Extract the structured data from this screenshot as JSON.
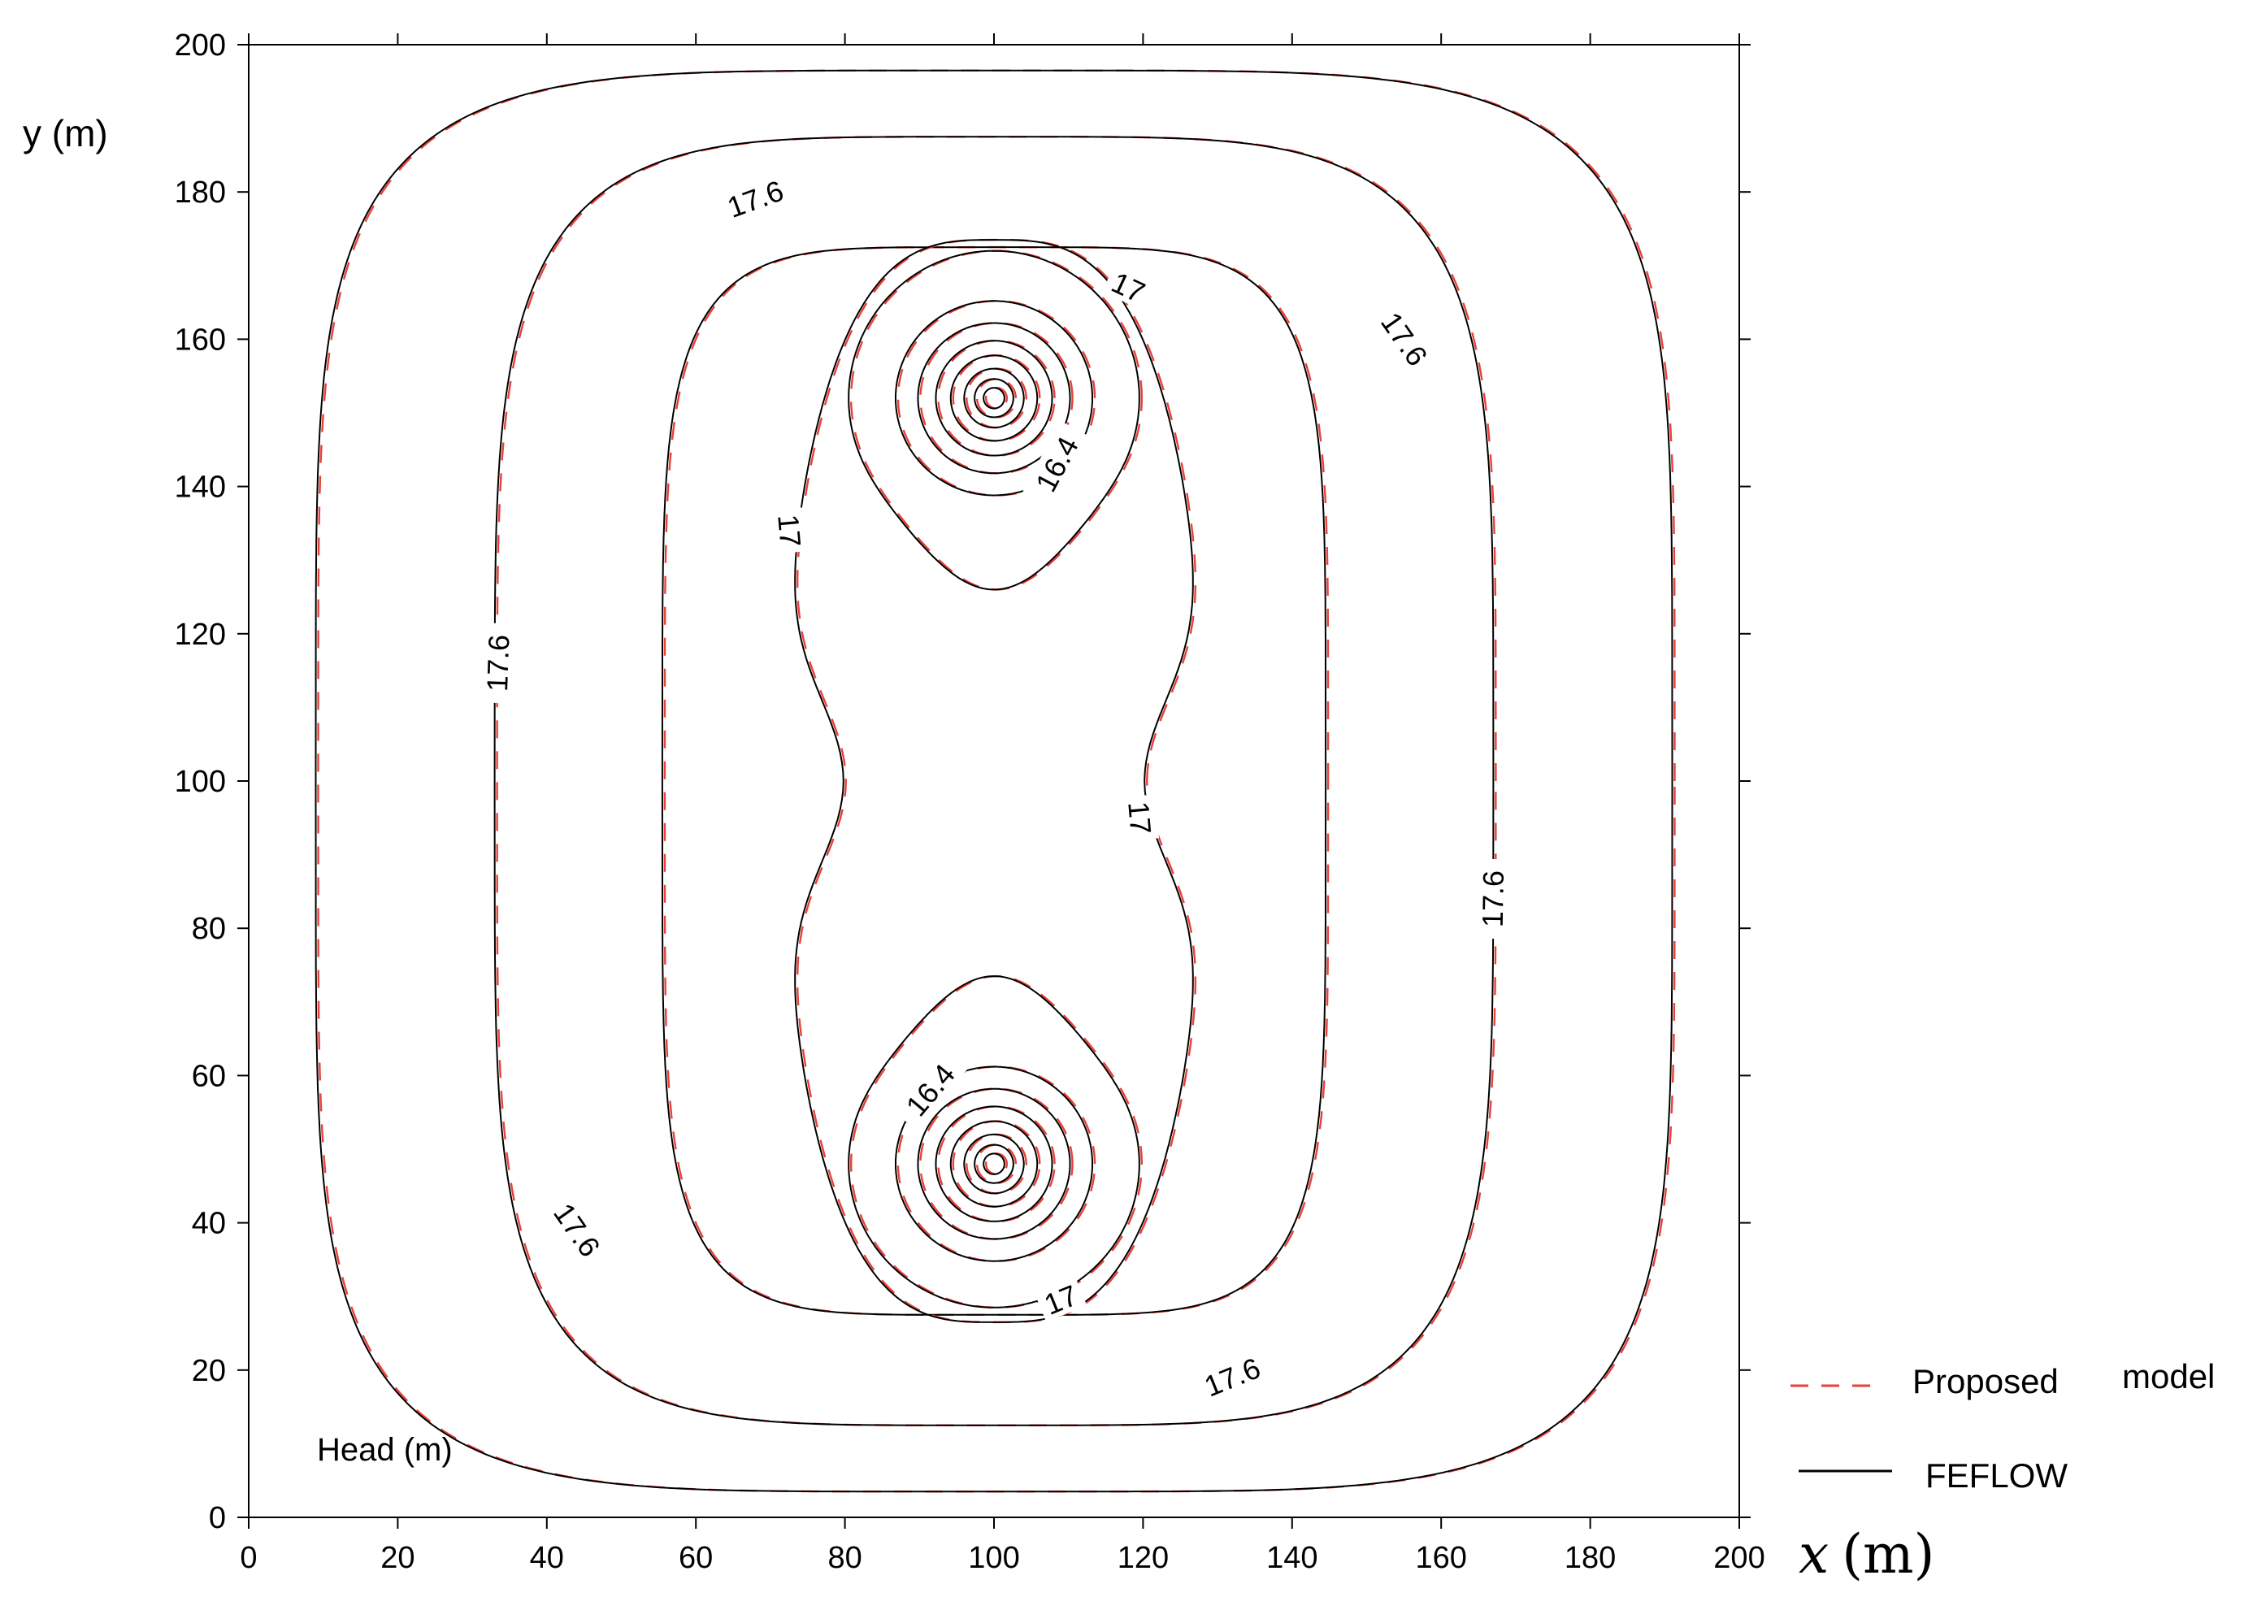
{
  "chart_data": {
    "type": "line",
    "subtype": "contour",
    "xlabel_var": "x",
    "xlabel_unit": "(m)",
    "ylabel": "y (m)",
    "xlim": [
      0,
      200
    ],
    "ylim": [
      0,
      200
    ],
    "x_ticks": [
      "0",
      "20",
      "40",
      "60",
      "80",
      "100",
      "120",
      "140",
      "160",
      "180",
      "200"
    ],
    "y_ticks": [
      "0",
      "20",
      "40",
      "60",
      "80",
      "100",
      "120",
      "140",
      "160",
      "180",
      "200"
    ],
    "grid": false,
    "annotation": "Head (m)",
    "legend_position": "right",
    "series": [
      {
        "name": "Proposed",
        "name_suffix": "model",
        "color": "#e8413a",
        "dash": "dashed"
      },
      {
        "name": "FEFLOW",
        "color": "#000000",
        "dash": "solid"
      }
    ],
    "wells": [
      {
        "x": 100,
        "y": 152
      },
      {
        "x": 100,
        "y": 48
      }
    ],
    "contour_lines": [
      {
        "type": "rect",
        "cx": 100,
        "cy": 100,
        "hw": 91,
        "hh": 96.5,
        "n": 5
      },
      {
        "type": "rect",
        "cx": 100,
        "cy": 100,
        "hw": 67,
        "hh": 87.5,
        "n": 4.5,
        "level": "17.6"
      },
      {
        "type": "rect",
        "cx": 100,
        "cy": 100,
        "hw": 44.5,
        "hh": 72.5,
        "n": 5
      },
      {
        "type": "peanut",
        "cx": 100,
        "cy": 100,
        "rx": 28.5,
        "ry": 73.5,
        "pinch": 8.3,
        "level": "17"
      },
      {
        "type": "loop",
        "x": 100,
        "y": 152,
        "rx": 19.5,
        "ry": 20,
        "tail": 6
      },
      {
        "type": "loop",
        "x": 100,
        "y": 48,
        "rx": 19.5,
        "ry": 19.5,
        "tail": 6
      },
      {
        "type": "circle",
        "x": 100,
        "y": 152,
        "r": 13.2
      },
      {
        "type": "circle",
        "x": 100,
        "y": 152,
        "r": 10.2
      },
      {
        "type": "circle",
        "x": 100,
        "y": 152,
        "r": 7.8
      },
      {
        "type": "circle",
        "x": 100,
        "y": 152,
        "r": 5.8
      },
      {
        "type": "circle",
        "x": 100,
        "y": 152,
        "r": 4.0
      },
      {
        "type": "circle",
        "x": 100,
        "y": 152,
        "r": 2.6
      },
      {
        "type": "circle",
        "x": 100,
        "y": 152,
        "r": 1.4
      },
      {
        "type": "circle",
        "x": 100,
        "y": 48,
        "r": 13.2
      },
      {
        "type": "circle",
        "x": 100,
        "y": 48,
        "r": 10.2
      },
      {
        "type": "circle",
        "x": 100,
        "y": 48,
        "r": 7.8
      },
      {
        "type": "circle",
        "x": 100,
        "y": 48,
        "r": 5.8
      },
      {
        "type": "circle",
        "x": 100,
        "y": 48,
        "r": 4.0
      },
      {
        "type": "circle",
        "x": 100,
        "y": 48,
        "r": 2.6
      },
      {
        "type": "circle",
        "x": 100,
        "y": 48,
        "r": 1.4
      }
    ],
    "contour_labels": [
      {
        "text": "17.6",
        "x": 68,
        "y": 179,
        "angle": -20
      },
      {
        "text": "17.6",
        "x": 155,
        "y": 160,
        "angle": 55
      },
      {
        "text": "17.6",
        "x": 33.5,
        "y": 116,
        "angle": -88
      },
      {
        "text": "17.6",
        "x": 167,
        "y": 84,
        "angle": -89
      },
      {
        "text": "17.6",
        "x": 44,
        "y": 39,
        "angle": 55
      },
      {
        "text": "17.6",
        "x": 132,
        "y": 19,
        "angle": -22
      },
      {
        "text": "17",
        "x": 118,
        "y": 167,
        "angle": 25
      },
      {
        "text": "17",
        "x": 72.5,
        "y": 134,
        "angle": 85
      },
      {
        "text": "17",
        "x": 119.5,
        "y": 95,
        "angle": 85
      },
      {
        "text": "17",
        "x": 109,
        "y": 29.5,
        "angle": -22
      },
      {
        "text": "16.4",
        "x": 108.5,
        "y": 143,
        "angle": -62
      },
      {
        "text": "16.4",
        "x": 91.5,
        "y": 58,
        "angle": -50
      }
    ]
  }
}
